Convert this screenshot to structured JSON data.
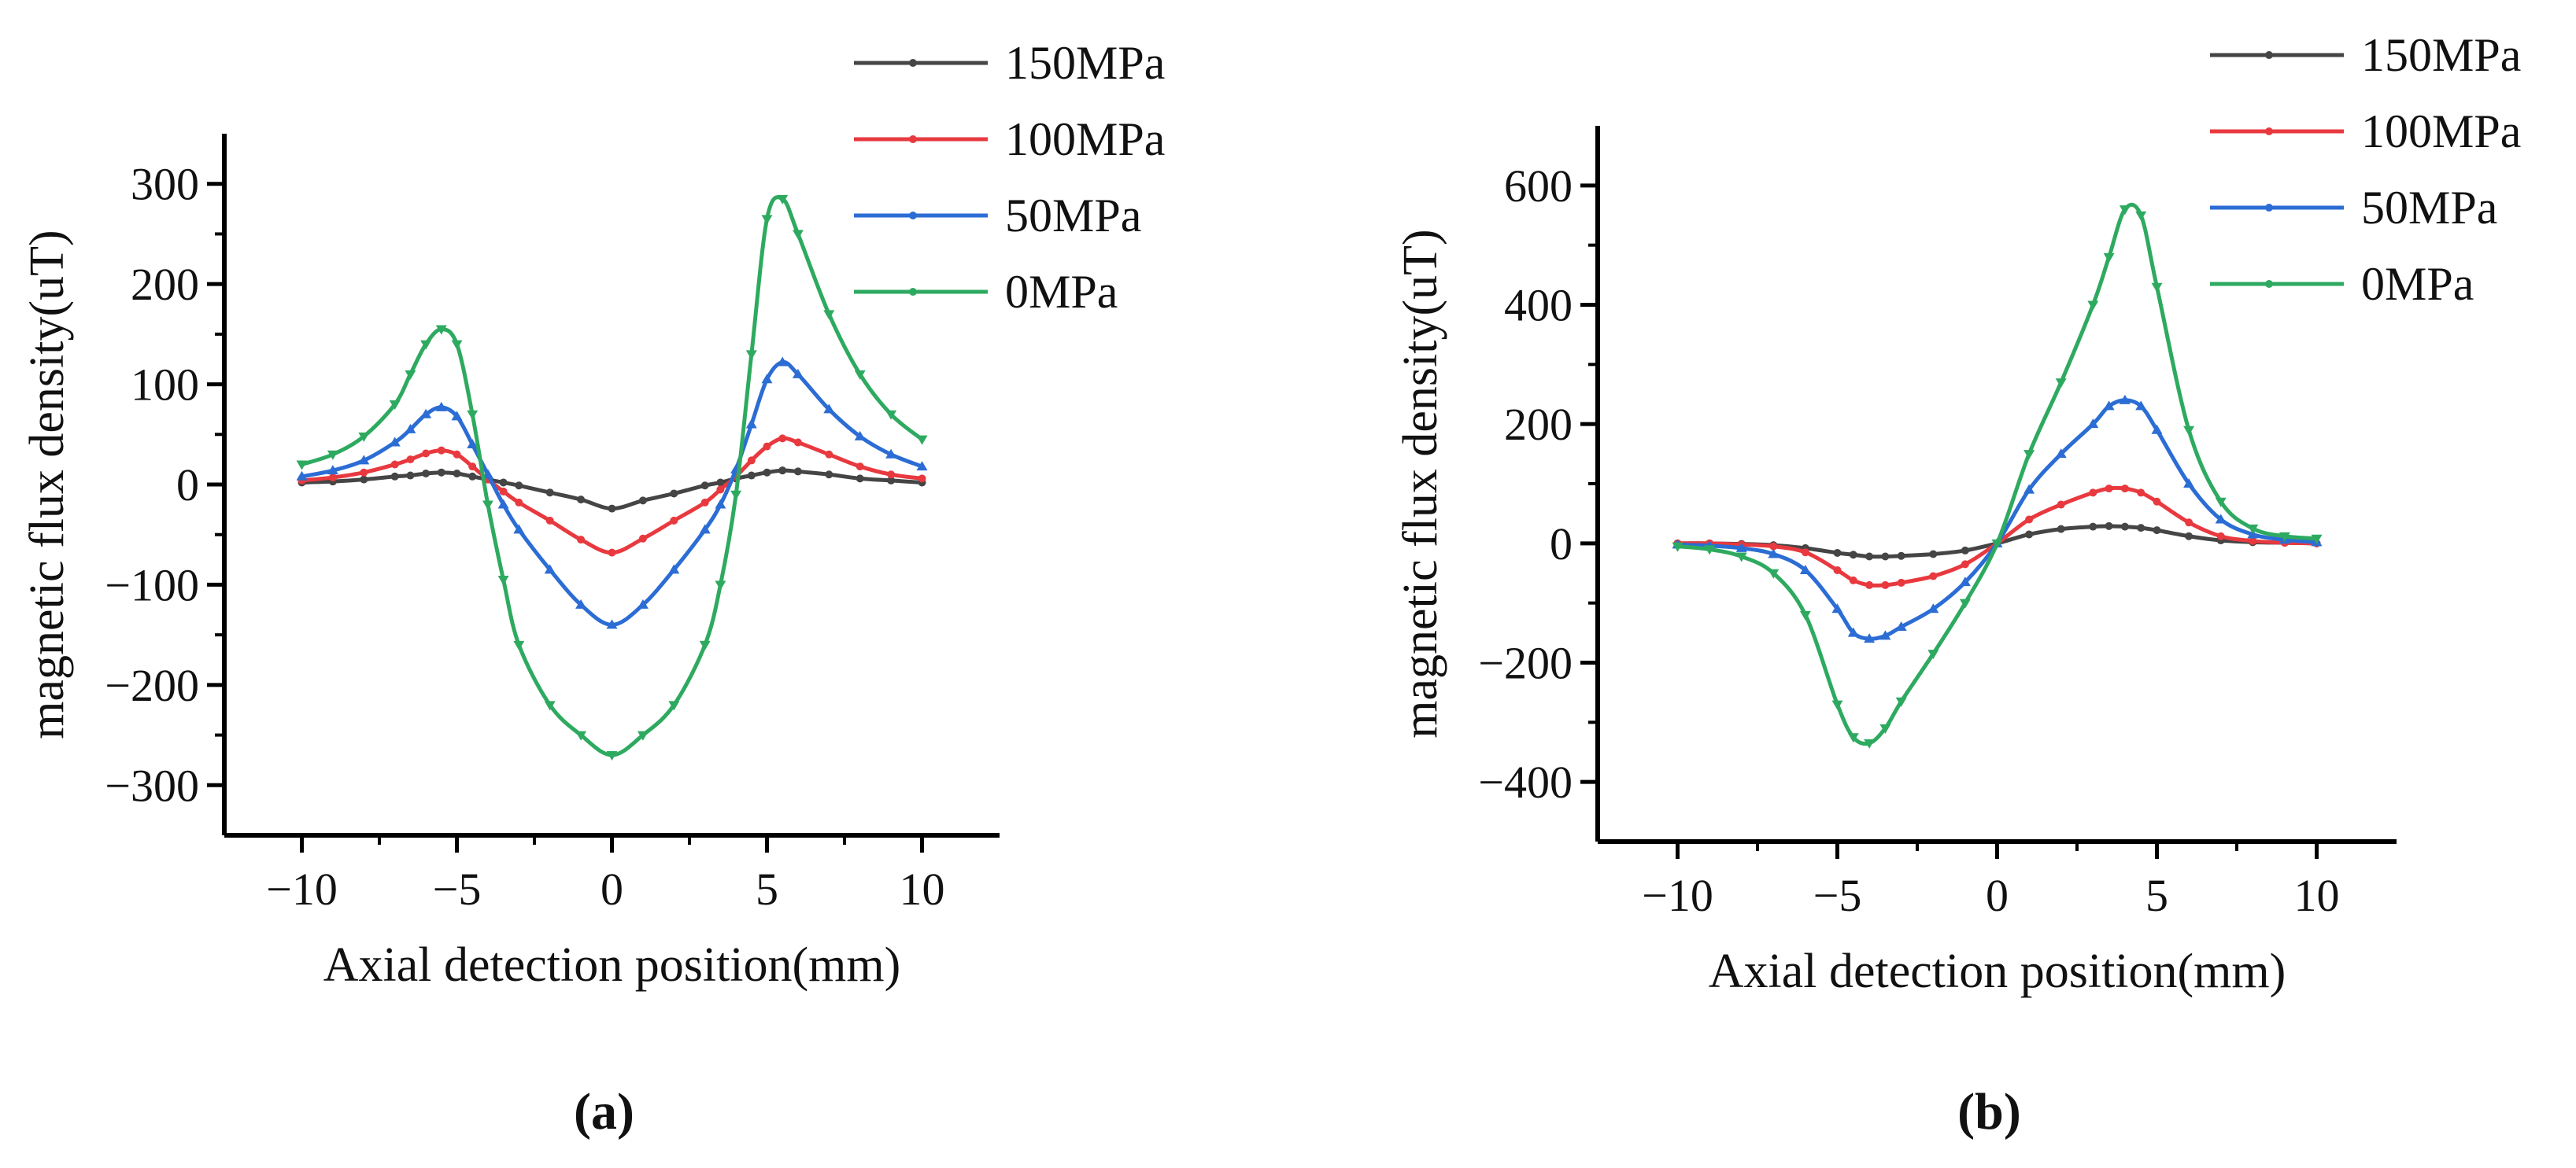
{
  "chart_data": [
    {
      "type": "line",
      "panel_label": "(a)",
      "xlabel": "Axial detection position(mm)",
      "ylabel": "magnetic flux density(uT)",
      "xlim": [
        -12.5,
        12.5
      ],
      "ylim": [
        -350,
        350
      ],
      "xticks": [
        -10,
        -5,
        0,
        5,
        10
      ],
      "yticks": [
        -300,
        -200,
        -100,
        0,
        100,
        200,
        300
      ],
      "xtick_labels": [
        "−10",
        "−5",
        "0",
        "5",
        "10"
      ],
      "ytick_labels": [
        "−300",
        "−200",
        "−100",
        "0",
        "100",
        "200",
        "300"
      ],
      "legend_position": "top-right",
      "grid": false,
      "x": [
        -10,
        -9,
        -8,
        -7,
        -6.5,
        -6,
        -5.5,
        -5,
        -4.5,
        -4,
        -3.5,
        -3,
        -2,
        -1,
        0,
        1,
        2,
        3,
        3.5,
        4,
        4.5,
        5,
        5.5,
        6,
        7,
        8,
        9,
        10
      ],
      "series": [
        {
          "name": "150MPa",
          "color": "#454545",
          "values": [
            2,
            3,
            5,
            8,
            9,
            11,
            12,
            11,
            8,
            5,
            2,
            -1,
            -8,
            -15,
            -24,
            -16,
            -9,
            -1,
            2,
            6,
            9,
            12,
            14,
            13,
            10,
            6,
            4,
            2
          ]
        },
        {
          "name": "100MPa",
          "color": "#e8393f",
          "values": [
            4,
            7,
            12,
            20,
            25,
            31,
            34,
            30,
            18,
            5,
            -7,
            -18,
            -36,
            -55,
            -68,
            -54,
            -36,
            -18,
            -5,
            8,
            24,
            38,
            46,
            42,
            30,
            18,
            10,
            6
          ]
        },
        {
          "name": "50MPa",
          "color": "#2b6dd4",
          "values": [
            8,
            14,
            24,
            42,
            55,
            70,
            77,
            68,
            40,
            10,
            -20,
            -45,
            -85,
            -120,
            -140,
            -120,
            -85,
            -45,
            -20,
            15,
            60,
            105,
            122,
            110,
            75,
            48,
            30,
            18
          ]
        },
        {
          "name": "0MPa",
          "color": "#2eaa60",
          "values": [
            20,
            30,
            48,
            80,
            110,
            140,
            155,
            140,
            70,
            -20,
            -95,
            -160,
            -220,
            -250,
            -270,
            -250,
            -220,
            -160,
            -100,
            -10,
            130,
            265,
            285,
            250,
            170,
            110,
            70,
            45
          ]
        }
      ]
    },
    {
      "type": "line",
      "panel_label": "(b)",
      "xlabel": "Axial detection position(mm)",
      "ylabel": "magnetic flux density(uT)",
      "xlim": [
        -12.5,
        12.5
      ],
      "ylim": [
        -500,
        700
      ],
      "xticks": [
        -10,
        -5,
        0,
        5,
        10
      ],
      "yticks": [
        -400,
        -200,
        0,
        200,
        400,
        600
      ],
      "xtick_labels": [
        "−10",
        "−5",
        "0",
        "5",
        "10"
      ],
      "ytick_labels": [
        "−400",
        "−200",
        "0",
        "200",
        "400",
        "600"
      ],
      "legend_position": "top-right",
      "grid": false,
      "x": [
        -10,
        -9,
        -8,
        -7,
        -6,
        -5,
        -4.5,
        -4,
        -3.5,
        -3,
        -2,
        -1,
        0,
        1,
        2,
        3,
        3.5,
        4,
        4.5,
        5,
        6,
        7,
        8,
        9,
        10
      ],
      "series": [
        {
          "name": "150MPa",
          "color": "#454545",
          "values": [
            0,
            0,
            -1,
            -3,
            -8,
            -16,
            -19,
            -22,
            -22,
            -21,
            -18,
            -12,
            0,
            15,
            24,
            28,
            29,
            28,
            26,
            22,
            12,
            5,
            2,
            1,
            0
          ]
        },
        {
          "name": "100MPa",
          "color": "#e8393f",
          "values": [
            0,
            0,
            -2,
            -5,
            -15,
            -45,
            -62,
            -70,
            -70,
            -66,
            -55,
            -35,
            0,
            40,
            65,
            85,
            92,
            92,
            85,
            70,
            35,
            12,
            4,
            1,
            0
          ]
        },
        {
          "name": "50MPa",
          "color": "#2b6dd4",
          "values": [
            -2,
            -4,
            -8,
            -18,
            -45,
            -110,
            -150,
            -160,
            -155,
            -140,
            -110,
            -65,
            0,
            90,
            150,
            200,
            230,
            240,
            230,
            190,
            100,
            40,
            15,
            6,
            2
          ]
        },
        {
          "name": "0MPa",
          "color": "#2eaa60",
          "values": [
            -5,
            -10,
            -22,
            -50,
            -120,
            -270,
            -325,
            -335,
            -310,
            -265,
            -185,
            -100,
            0,
            150,
            270,
            400,
            480,
            560,
            550,
            430,
            190,
            70,
            25,
            12,
            8
          ]
        }
      ]
    }
  ]
}
